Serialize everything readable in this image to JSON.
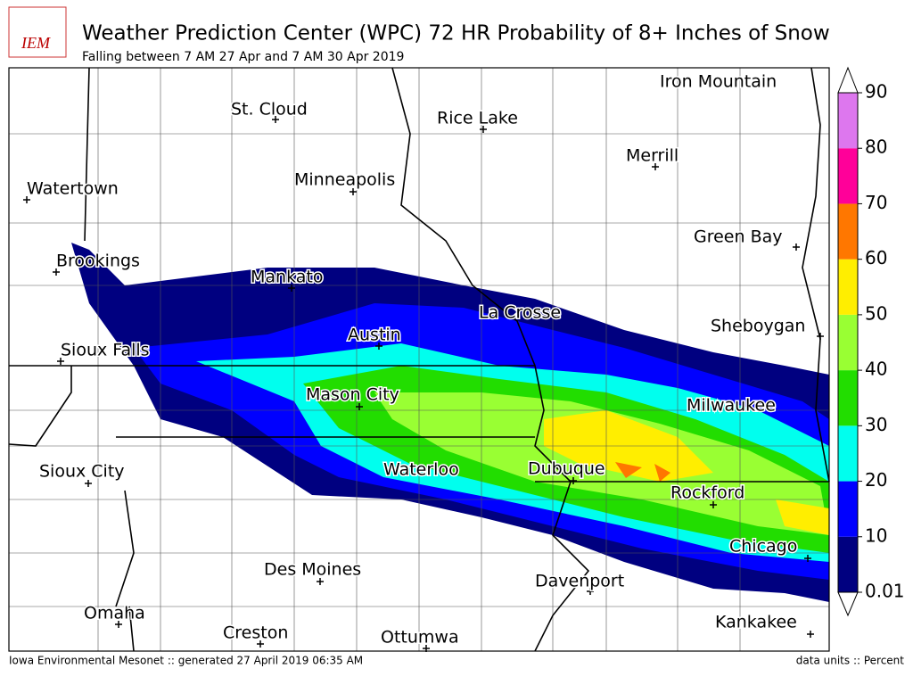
{
  "header": {
    "logo": "IEM",
    "title": "Weather Prediction Center (WPC) 72 HR Probability of 8+ Inches of Snow",
    "subtitle": "Falling between 7 AM 27 Apr and 7 AM 30 Apr 2019"
  },
  "cities": [
    "Iron Mountain",
    "St. Cloud",
    "Rice Lake",
    "Merrill",
    "Watertown",
    "Minneapolis",
    "Green Bay",
    "Brookings",
    "Mankato",
    "La Crosse",
    "Sheboygan",
    "Sioux Falls",
    "Austin",
    "Mason City",
    "Milwaukee",
    "Waterloo",
    "Dubuque",
    "Sioux City",
    "Rockford",
    "Chicago",
    "Des Moines",
    "Davenport",
    "Omaha",
    "Kankakee",
    "Creston",
    "Ottumwa"
  ],
  "legend": {
    "ticks": [
      0.01,
      10,
      20,
      30,
      40,
      50,
      60,
      70,
      80,
      90
    ],
    "colors": [
      "#000080",
      "#0000ff",
      "#00ffee",
      "#22dd00",
      "#99ff33",
      "#ffee00",
      "#ff7700",
      "#ff0099",
      "#dd77ee"
    ]
  },
  "footer": {
    "left": "Iowa Environmental Mesonet :: generated 27 April 2019 06:35 AM",
    "right": "data units :: Percent"
  }
}
